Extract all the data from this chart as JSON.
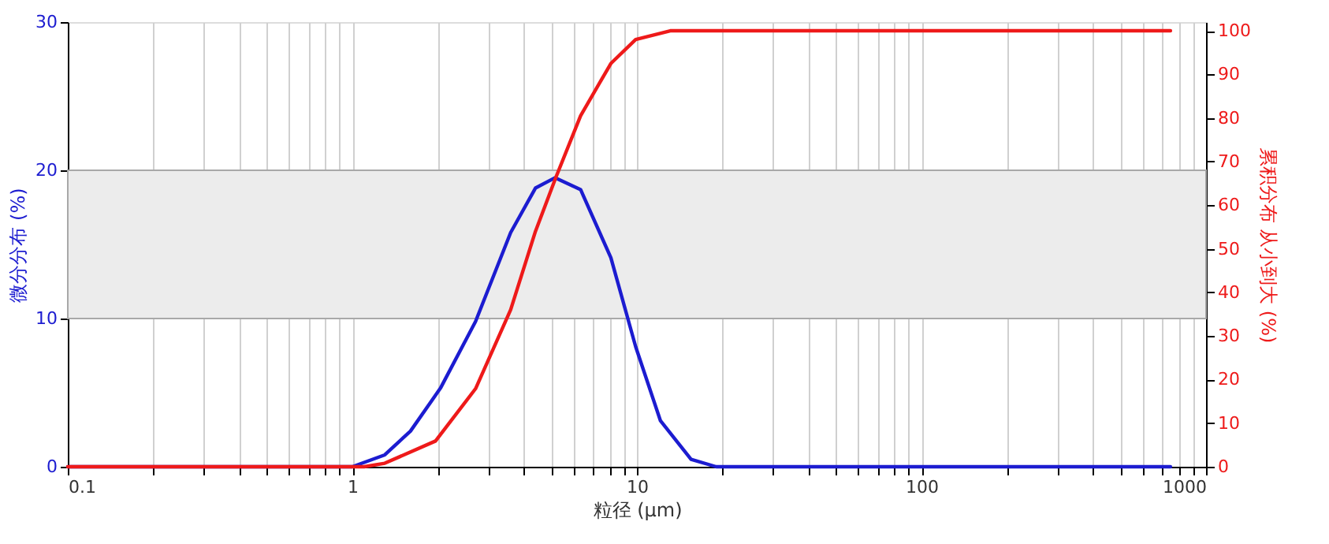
{
  "chart_data": {
    "type": "line",
    "xlabel": "粒径 (μm)",
    "ylabel": "微分分布 (%)",
    "y2label": "累积分布 从小到大 (%)",
    "xlim": [
      0.1,
      1000
    ],
    "xticks": [
      0.1,
      {
        "value": 0.2,
        "label": null
      },
      {
        "value": 0.3,
        "label": null
      },
      {
        "value": 0.4,
        "label": null
      },
      {
        "value": 0.5,
        "label": null
      },
      {
        "value": 0.6,
        "label": null
      },
      {
        "value": 0.7,
        "label": null
      },
      {
        "value": 0.8,
        "label": null
      },
      {
        "value": 0.9,
        "label": null
      },
      1,
      {
        "value": 2,
        "label": null
      },
      {
        "value": 3,
        "label": null
      },
      {
        "value": 4,
        "label": null
      },
      {
        "value": 5,
        "label": null
      },
      {
        "value": 6,
        "label": null
      },
      {
        "value": 7,
        "label": null
      },
      {
        "value": 8,
        "label": null
      },
      {
        "value": 9,
        "label": null
      },
      10,
      {
        "value": 20,
        "label": null
      },
      {
        "value": 30,
        "label": null
      },
      {
        "value": 40,
        "label": null
      },
      {
        "value": 50,
        "label": null
      },
      {
        "value": 60,
        "label": null
      },
      {
        "value": 70,
        "label": null
      },
      {
        "value": 80,
        "label": null
      },
      {
        "value": 90,
        "label": null
      },
      100,
      {
        "value": 200,
        "label": null
      },
      {
        "value": 300,
        "label": null
      },
      {
        "value": 400,
        "label": null
      },
      {
        "value": 500,
        "label": null
      },
      {
        "value": 600,
        "label": null
      },
      {
        "value": 700,
        "label": null
      },
      {
        "value": 800,
        "label": null
      },
      {
        "value": 900,
        "label": null
      },
      1000
    ],
    "ylim": [
      0,
      30
    ],
    "yticks": [
      0,
      10,
      20,
      30
    ],
    "y2lim": [
      0,
      102
    ],
    "y2ticks": [
      0,
      10,
      20,
      30,
      40,
      50,
      60,
      70,
      80,
      90,
      100
    ],
    "log": "x",
    "grid": "x",
    "marker": "none",
    "line_style": "solid",
    "bands": [
      {
        "axis": "y",
        "from": 10,
        "to": 20,
        "color": "#ececec"
      }
    ],
    "series": [
      {
        "color": "#1c1cd0",
        "x": [
          0.1,
          1.0,
          1.3,
          1.6,
          2.04,
          2.71,
          3.6,
          4.4,
          5.16,
          6.34,
          8.1,
          9.9,
          12.1,
          15.5,
          19,
          750
        ],
        "values": [
          0,
          0,
          0.8,
          2.4,
          5.3,
          9.8,
          15.8,
          18.8,
          19.5,
          18.7,
          14.1,
          8.1,
          3.1,
          0.5,
          0,
          0
        ]
      },
      {
        "color": "#ee1a1a",
        "axis": "y2",
        "x": [
          0.1,
          1.1,
          1.3,
          1.96,
          2.71,
          3.6,
          4.4,
          5.2,
          6.34,
          8.1,
          9.9,
          13.1,
          750
        ],
        "values": [
          0,
          0,
          0.8,
          5.9,
          17.9,
          36,
          54,
          66.5,
          80.5,
          92.5,
          98,
          100,
          100
        ]
      }
    ]
  }
}
